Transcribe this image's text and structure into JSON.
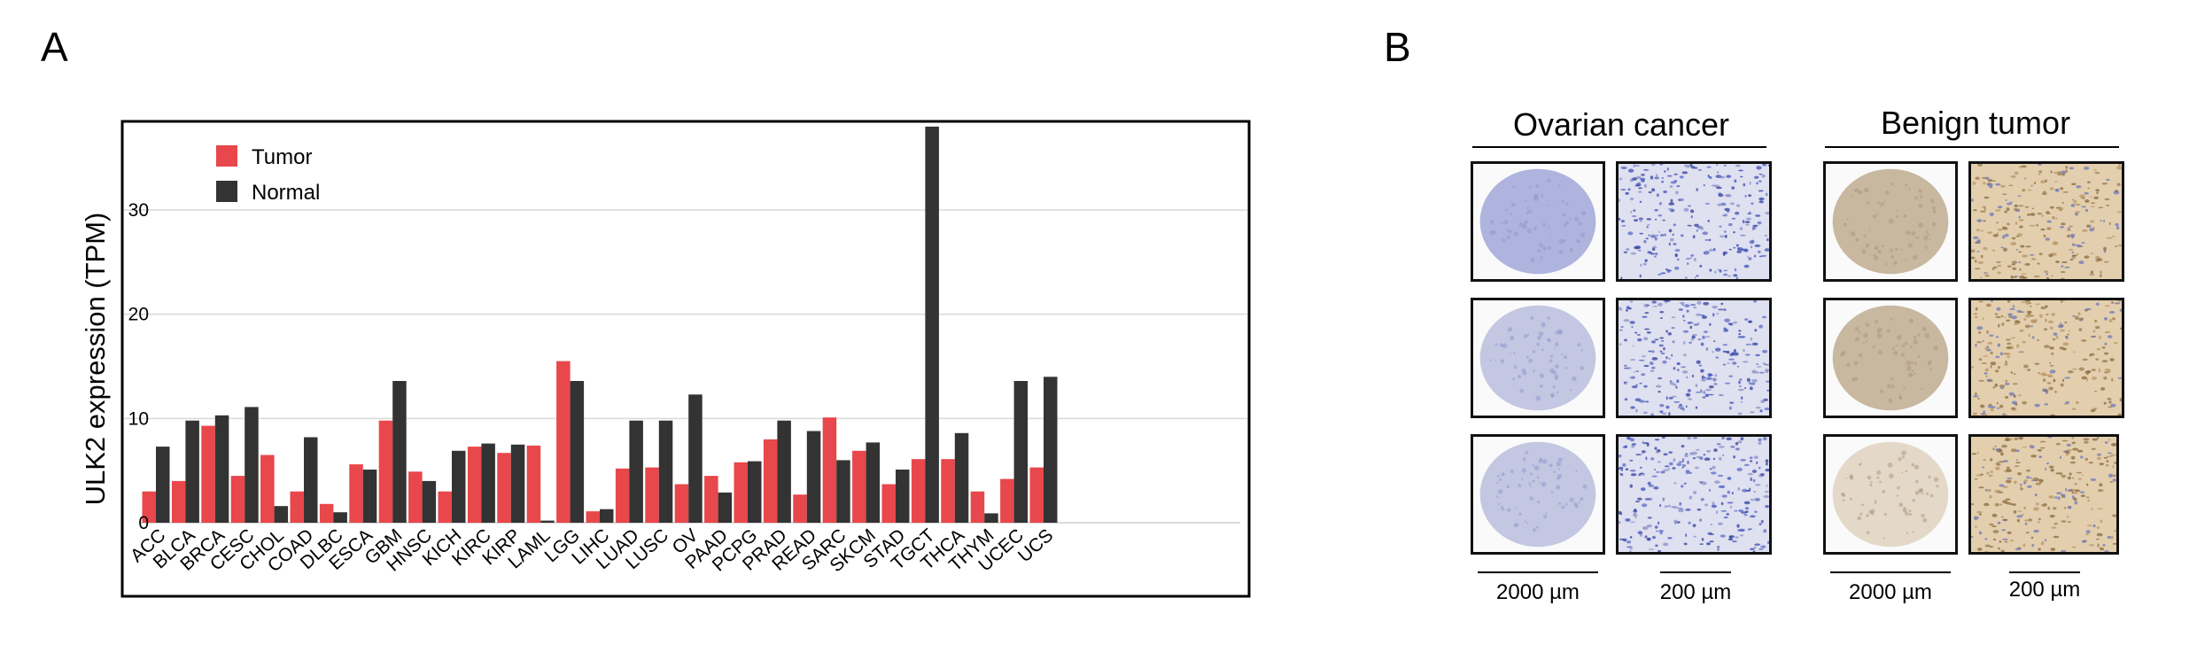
{
  "panels": {
    "a_label": "A",
    "b_label": "B"
  },
  "chart_data": {
    "type": "bar",
    "ylabel": "ULK2 expression (TPM)",
    "xlabel": "",
    "ylim": [
      0,
      38.5
    ],
    "yticks": [
      0,
      10,
      20,
      30
    ],
    "grid": true,
    "legend_position": "top-left",
    "colors": {
      "Tumor": "#e8474b",
      "Normal": "#333333"
    },
    "categories": [
      "ACC",
      "BLCA",
      "BRCA",
      "CESC",
      "CHOL",
      "COAD",
      "DLBC",
      "ESCA",
      "GBM",
      "HNSC",
      "KICH",
      "KIRC",
      "KIRP",
      "LAML",
      "LGG",
      "LIHC",
      "LUAD",
      "LUSC",
      "OV",
      "PAAD",
      "PCPG",
      "PRAD",
      "READ",
      "SARC",
      "SKCM",
      "STAD",
      "TGCT",
      "THCA",
      "THYM",
      "UCEC",
      "UCS"
    ],
    "series": [
      {
        "name": "Tumor",
        "values": [
          3.0,
          4.0,
          9.3,
          4.5,
          6.5,
          3.0,
          1.8,
          5.6,
          9.8,
          4.9,
          3.0,
          7.3,
          6.7,
          7.4,
          15.5,
          1.1,
          5.2,
          5.3,
          3.7,
          4.5,
          5.8,
          8.0,
          2.7,
          10.1,
          6.9,
          3.7,
          6.1,
          6.1,
          3.0,
          4.2,
          5.3
        ]
      },
      {
        "name": "Normal",
        "values": [
          7.3,
          9.8,
          10.3,
          11.1,
          1.6,
          8.2,
          1.0,
          5.1,
          13.6,
          4.0,
          6.9,
          7.6,
          7.5,
          0.2,
          13.6,
          1.3,
          9.8,
          9.8,
          12.3,
          2.9,
          5.9,
          9.8,
          8.8,
          6.0,
          7.7,
          5.1,
          38.0,
          8.6,
          0.9,
          13.6,
          14.0
        ]
      }
    ]
  },
  "panel_b": {
    "groups": [
      {
        "title": "Ovarian cancer"
      },
      {
        "title": "Benign tumor"
      }
    ],
    "scale_labels": [
      "2000 µm",
      "200 µm",
      "2000 µm",
      "200 µm"
    ]
  }
}
